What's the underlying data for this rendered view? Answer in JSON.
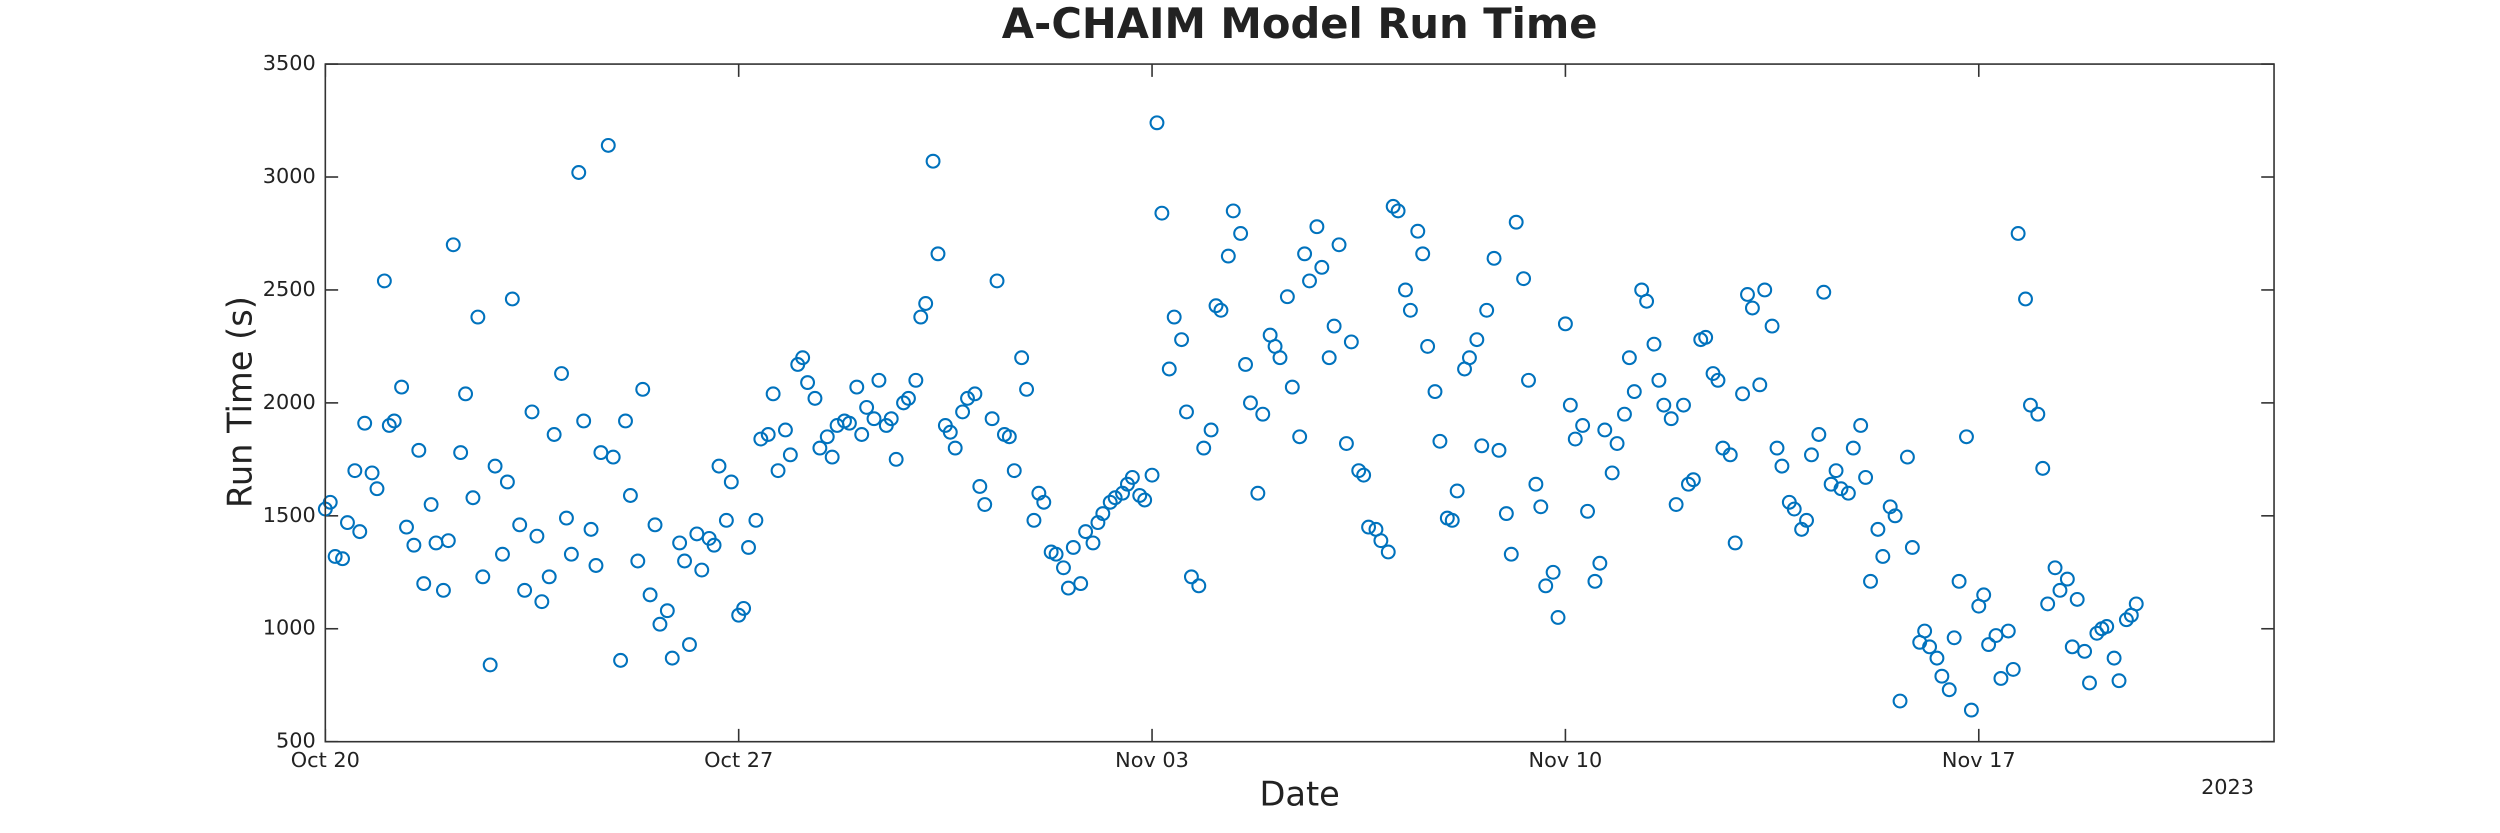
{
  "chart_data": {
    "type": "scatter",
    "title": "A-CHAIM Model Run Time",
    "xlabel": "Date",
    "ylabel": "Run Time (s)",
    "x_offset_label": "2023",
    "color": "#0072bd",
    "xlim": [
      "2023-10-20",
      "2023-11-22"
    ],
    "xticks": [
      {
        "value": "2023-10-20",
        "label": "Oct 20"
      },
      {
        "value": "2023-10-27",
        "label": "Oct 27"
      },
      {
        "value": "2023-11-03",
        "label": "Nov 03"
      },
      {
        "value": "2023-11-10",
        "label": "Nov 10"
      },
      {
        "value": "2023-11-17",
        "label": "Nov 17"
      }
    ],
    "ylim": [
      500,
      3500
    ],
    "yticks": [
      500,
      1000,
      1500,
      2000,
      2500,
      3000,
      3500
    ],
    "x": [
      "2023-10-20T00:00",
      "2023-10-20T02:00",
      "2023-10-20T04:00",
      "2023-10-20T07:00",
      "2023-10-20T09:00",
      "2023-10-20T12:00",
      "2023-10-20T14:00",
      "2023-10-20T16:00",
      "2023-10-20T19:00",
      "2023-10-20T21:00",
      "2023-10-21T00:00",
      "2023-10-21T02:00",
      "2023-10-21T04:00",
      "2023-10-21T07:00",
      "2023-10-21T09:00",
      "2023-10-21T12:00",
      "2023-10-21T14:00",
      "2023-10-21T16:00",
      "2023-10-21T19:00",
      "2023-10-21T21:00",
      "2023-10-22T00:00",
      "2023-10-22T02:00",
      "2023-10-22T04:00",
      "2023-10-22T07:00",
      "2023-10-22T09:00",
      "2023-10-22T12:00",
      "2023-10-22T14:00",
      "2023-10-22T16:00",
      "2023-10-22T19:00",
      "2023-10-22T21:00",
      "2023-10-23T00:00",
      "2023-10-23T02:00",
      "2023-10-23T04:00",
      "2023-10-23T07:00",
      "2023-10-23T09:00",
      "2023-10-23T12:00",
      "2023-10-23T14:00",
      "2023-10-23T16:00",
      "2023-10-23T19:00",
      "2023-10-23T21:00",
      "2023-10-24T00:00",
      "2023-10-24T02:00",
      "2023-10-24T04:00",
      "2023-10-24T07:00",
      "2023-10-24T09:00",
      "2023-10-24T12:00",
      "2023-10-24T14:00",
      "2023-10-24T16:00",
      "2023-10-24T19:00",
      "2023-10-24T21:00",
      "2023-10-25T00:00",
      "2023-10-25T02:00",
      "2023-10-25T04:00",
      "2023-10-25T07:00",
      "2023-10-25T09:00",
      "2023-10-25T12:00",
      "2023-10-25T14:00",
      "2023-10-25T16:00",
      "2023-10-25T19:00",
      "2023-10-25T21:00",
      "2023-10-26T00:00",
      "2023-10-26T02:00",
      "2023-10-26T04:00",
      "2023-10-26T07:00",
      "2023-10-26T09:00",
      "2023-10-26T12:00",
      "2023-10-26T14:00",
      "2023-10-26T16:00",
      "2023-10-26T19:00",
      "2023-10-26T21:00",
      "2023-10-27T00:00",
      "2023-10-27T02:00",
      "2023-10-27T04:00",
      "2023-10-27T07:00",
      "2023-10-27T09:00",
      "2023-10-27T12:00",
      "2023-10-27T14:00",
      "2023-10-27T16:00",
      "2023-10-27T19:00",
      "2023-10-27T21:00",
      "2023-10-28T00:00",
      "2023-10-28T02:00",
      "2023-10-28T04:00",
      "2023-10-28T07:00",
      "2023-10-28T09:00",
      "2023-10-28T12:00",
      "2023-10-28T14:00",
      "2023-10-28T16:00",
      "2023-10-28T19:00",
      "2023-10-28T21:00",
      "2023-10-29T00:00",
      "2023-10-29T02:00",
      "2023-10-29T04:00",
      "2023-10-29T07:00",
      "2023-10-29T09:00",
      "2023-10-29T12:00",
      "2023-10-29T14:00",
      "2023-10-29T16:00",
      "2023-10-29T19:00",
      "2023-10-29T21:00",
      "2023-10-30T00:00",
      "2023-10-30T02:00",
      "2023-10-30T04:00",
      "2023-10-30T07:00",
      "2023-10-30T09:00",
      "2023-10-30T12:00",
      "2023-10-30T14:00",
      "2023-10-30T16:00",
      "2023-10-30T19:00",
      "2023-10-30T21:00",
      "2023-10-31T00:00",
      "2023-10-31T02:00",
      "2023-10-31T04:00",
      "2023-10-31T07:00",
      "2023-10-31T09:00",
      "2023-10-31T12:00",
      "2023-10-31T14:00",
      "2023-10-31T16:00",
      "2023-10-31T19:00",
      "2023-10-31T21:00",
      "2023-11-01T00:00",
      "2023-11-01T02:00",
      "2023-11-01T04:00",
      "2023-11-01T07:00",
      "2023-11-01T09:00",
      "2023-11-01T12:00",
      "2023-11-01T14:00",
      "2023-11-01T16:00",
      "2023-11-01T19:00",
      "2023-11-01T21:00",
      "2023-11-02T00:00",
      "2023-11-02T02:00",
      "2023-11-02T04:00",
      "2023-11-02T07:00",
      "2023-11-02T09:00",
      "2023-11-02T12:00",
      "2023-11-02T14:00",
      "2023-11-02T16:00",
      "2023-11-02T19:00",
      "2023-11-02T21:00",
      "2023-11-03T00:00",
      "2023-11-03T02:00",
      "2023-11-03T04:00",
      "2023-11-03T07:00",
      "2023-11-03T09:00",
      "2023-11-03T12:00",
      "2023-11-03T14:00",
      "2023-11-03T16:00",
      "2023-11-03T19:00",
      "2023-11-03T21:00",
      "2023-11-04T00:00",
      "2023-11-04T02:00",
      "2023-11-04T04:00",
      "2023-11-04T07:00",
      "2023-11-04T09:00",
      "2023-11-04T12:00",
      "2023-11-04T14:00",
      "2023-11-04T16:00",
      "2023-11-04T19:00",
      "2023-11-04T21:00",
      "2023-11-05T00:00",
      "2023-11-05T02:00",
      "2023-11-05T04:00",
      "2023-11-05T07:00",
      "2023-11-05T09:00",
      "2023-11-05T12:00",
      "2023-11-05T14:00",
      "2023-11-05T16:00",
      "2023-11-05T19:00",
      "2023-11-05T21:00",
      "2023-11-06T00:00",
      "2023-11-06T02:00",
      "2023-11-06T04:00",
      "2023-11-06T07:00",
      "2023-11-06T09:00",
      "2023-11-06T12:00",
      "2023-11-06T14:00",
      "2023-11-06T16:00",
      "2023-11-06T19:00",
      "2023-11-06T21:00",
      "2023-11-07T00:00",
      "2023-11-07T02:00",
      "2023-11-07T04:00",
      "2023-11-07T07:00",
      "2023-11-07T09:00",
      "2023-11-07T12:00",
      "2023-11-07T14:00",
      "2023-11-07T16:00",
      "2023-11-07T19:00",
      "2023-11-07T21:00",
      "2023-11-08T00:00",
      "2023-11-08T02:00",
      "2023-11-08T04:00",
      "2023-11-08T07:00",
      "2023-11-08T09:00",
      "2023-11-08T12:00",
      "2023-11-08T14:00",
      "2023-11-08T16:00",
      "2023-11-08T19:00",
      "2023-11-08T21:00",
      "2023-11-09T00:00",
      "2023-11-09T02:00",
      "2023-11-09T04:00",
      "2023-11-09T07:00",
      "2023-11-09T09:00",
      "2023-11-09T12:00",
      "2023-11-09T14:00",
      "2023-11-09T16:00",
      "2023-11-09T19:00",
      "2023-11-09T21:00",
      "2023-11-10T00:00",
      "2023-11-10T02:00",
      "2023-11-10T04:00",
      "2023-11-10T07:00",
      "2023-11-10T09:00",
      "2023-11-10T12:00",
      "2023-11-10T14:00",
      "2023-11-10T16:00",
      "2023-11-10T19:00",
      "2023-11-10T21:00",
      "2023-11-11T00:00",
      "2023-11-11T02:00",
      "2023-11-11T04:00",
      "2023-11-11T07:00",
      "2023-11-11T09:00",
      "2023-11-11T12:00",
      "2023-11-11T14:00",
      "2023-11-11T16:00",
      "2023-11-11T19:00",
      "2023-11-11T21:00",
      "2023-11-12T00:00",
      "2023-11-12T02:00",
      "2023-11-12T04:00",
      "2023-11-12T07:00",
      "2023-11-12T09:00",
      "2023-11-12T12:00",
      "2023-11-12T14:00",
      "2023-11-12T16:00",
      "2023-11-12T19:00",
      "2023-11-12T21:00",
      "2023-11-13T00:00",
      "2023-11-13T02:00",
      "2023-11-13T04:00",
      "2023-11-13T07:00",
      "2023-11-13T09:00",
      "2023-11-13T12:00",
      "2023-11-13T14:00",
      "2023-11-13T16:00",
      "2023-11-13T19:00",
      "2023-11-13T21:00",
      "2023-11-14T00:00",
      "2023-11-14T02:00",
      "2023-11-14T04:00",
      "2023-11-14T07:00",
      "2023-11-14T09:00",
      "2023-11-14T12:00",
      "2023-11-14T14:00",
      "2023-11-14T16:00",
      "2023-11-14T19:00",
      "2023-11-14T21:00",
      "2023-11-15T00:00",
      "2023-11-15T02:00",
      "2023-11-15T04:00",
      "2023-11-15T07:00",
      "2023-11-15T09:00",
      "2023-11-15T12:00",
      "2023-11-15T14:00",
      "2023-11-15T16:00",
      "2023-11-15T19:00",
      "2023-11-15T21:00",
      "2023-11-16T00:00",
      "2023-11-16T02:00",
      "2023-11-16T04:00",
      "2023-11-16T07:00",
      "2023-11-16T09:00",
      "2023-11-16T12:00",
      "2023-11-16T14:00",
      "2023-11-16T16:00",
      "2023-11-16T19:00",
      "2023-11-16T21:00",
      "2023-11-17T00:00",
      "2023-11-17T02:00",
      "2023-11-17T04:00",
      "2023-11-17T07:00",
      "2023-11-17T09:00",
      "2023-11-17T12:00",
      "2023-11-17T14:00",
      "2023-11-17T16:00",
      "2023-11-17T19:00",
      "2023-11-17T21:00",
      "2023-11-18T00:00",
      "2023-11-18T02:00",
      "2023-11-18T04:00",
      "2023-11-18T07:00",
      "2023-11-18T09:00",
      "2023-11-18T12:00",
      "2023-11-18T14:00",
      "2023-11-18T16:00",
      "2023-11-18T19:00",
      "2023-11-18T21:00",
      "2023-11-19T00:00",
      "2023-11-19T02:00",
      "2023-11-19T04:00",
      "2023-11-19T07:00",
      "2023-11-19T09:00",
      "2023-11-19T12:00",
      "2023-11-19T14:00",
      "2023-11-19T16:00"
    ],
    "values": [
      1530,
      1560,
      1320,
      1310,
      1470,
      1700,
      1430,
      1910,
      1690,
      1620,
      2540,
      1900,
      1920,
      2070,
      1450,
      1370,
      1790,
      1200,
      1550,
      1380,
      1170,
      1390,
      2700,
      1780,
      2040,
      1580,
      2380,
      1230,
      840,
      1720,
      1330,
      1650,
      2460,
      1460,
      1170,
      1960,
      1410,
      1120,
      1230,
      1860,
      2130,
      1490,
      1330,
      3020,
      1920,
      1440,
      1280,
      1780,
      3140,
      1760,
      860,
      1920,
      1590,
      1300,
      2060,
      1150,
      1460,
      1020,
      1080,
      870,
      1380,
      1300,
      930,
      1420,
      1260,
      1400,
      1370,
      1720,
      1480,
      1650,
      1060,
      1090,
      1360,
      1480,
      1840,
      1860,
      2040,
      1700,
      1880,
      1770,
      2170,
      2200,
      2090,
      2020,
      1800,
      1850,
      1760,
      1900,
      1920,
      1910,
      2070,
      1860,
      1980,
      1930,
      2100,
      1900,
      1930,
      1750,
      2000,
      2020,
      2100,
      2380,
      2440,
      3070,
      2660,
      1900,
      1870,
      1800,
      1960,
      2020,
      2040,
      1630,
      1550,
      1930,
      2540,
      1860,
      1850,
      1700,
      2200,
      2060,
      1480,
      1600,
      1560,
      1340,
      1330,
      1270,
      1180,
      1360,
      1200,
      1430,
      1380,
      1470,
      1510,
      1560,
      1580,
      1600,
      1640,
      1670,
      1590,
      1570,
      1680,
      3240,
      2840,
      2150,
      2380,
      2280,
      1960,
      1230,
      1190,
      1800,
      1880,
      2430,
      2410,
      2650,
      2850,
      2750,
      2170,
      2000,
      1600,
      1950,
      2300,
      2250,
      2200,
      2470,
      2070,
      1850,
      2660,
      2540,
      2780,
      2600,
      2200,
      2340,
      2700,
      1820,
      2270,
      1700,
      1680,
      1450,
      1440,
      1390,
      1340,
      2870,
      2850,
      2500,
      2410,
      2760,
      2660,
      2250,
      2050,
      1830,
      1490,
      1480,
      1610,
      2150,
      2200,
      2280,
      1810,
      2410,
      2640,
      1790,
      1510,
      1330,
      2800,
      2550,
      2100,
      1640,
      1540,
      1190,
      1250,
      1050,
      2350,
      1990,
      1840,
      1900,
      1520,
      1210,
      1290,
      1880,
      1690,
      1820,
      1950,
      2200,
      2050,
      2500,
      2450,
      2260,
      2100,
      1990,
      1930,
      1550,
      1990,
      1640,
      1660,
      2280,
      2290,
      2130,
      2100,
      1800,
      1770,
      1380,
      2040,
      2480,
      2420,
      2080,
      2500,
      2340,
      1800,
      1720,
      1560,
      1530,
      1440,
      1480,
      1770,
      1860,
      2490,
      1640,
      1700,
      1620,
      1600,
      1800,
      1900,
      1670,
      1210,
      1440,
      1320,
      1540,
      1500,
      680,
      1760,
      1360,
      940,
      990,
      920,
      870,
      790,
      730,
      960,
      1210,
      1850,
      640,
      1100,
      1150,
      930,
      970,
      780,
      990,
      820,
      2750,
      2460,
      1990,
      1950,
      1710,
      1110,
      1270,
      1170,
      1220,
      920,
      1130,
      900,
      760,
      980,
      1000,
      1010,
      870,
      770,
      1040,
      1060,
      1110
    ]
  }
}
